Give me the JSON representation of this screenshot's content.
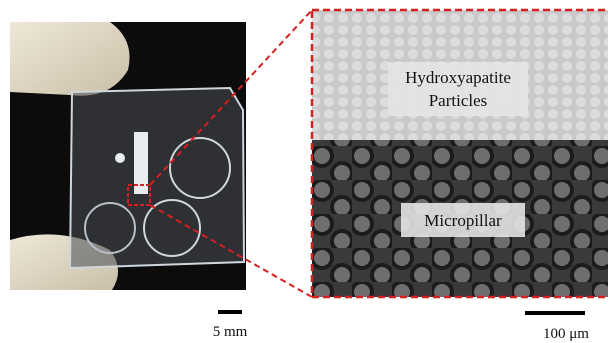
{
  "labels": {
    "particles": [
      "Hydroxyapatite",
      "Particles"
    ],
    "pillar": "Micropillar"
  },
  "scale_bars": {
    "left": "5 mm",
    "right": "100 μm"
  }
}
